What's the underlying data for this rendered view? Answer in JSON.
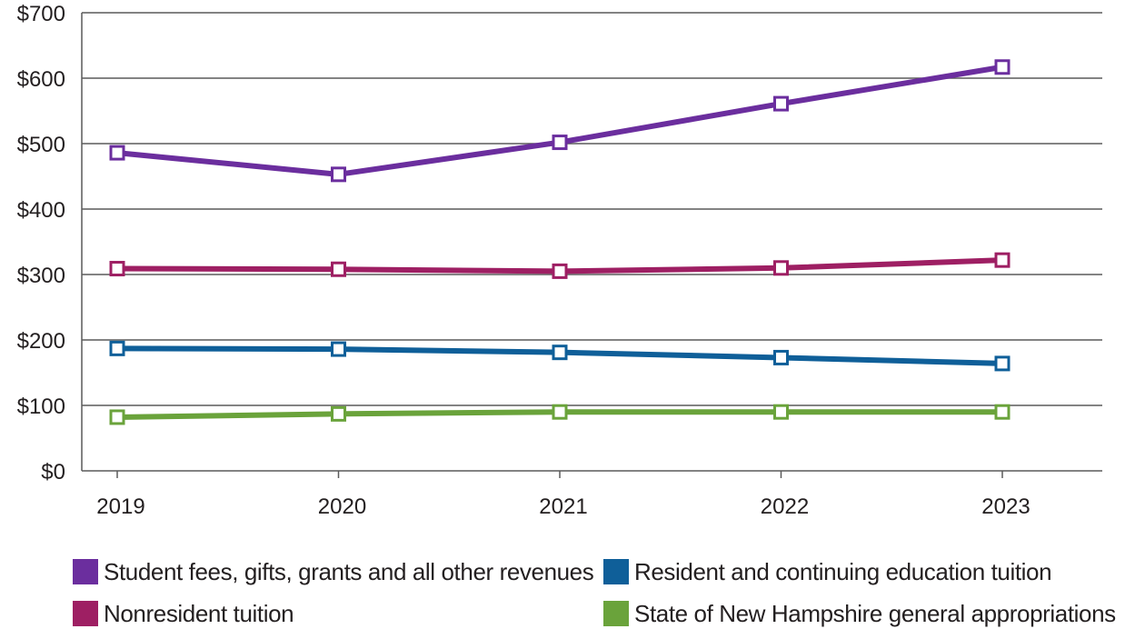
{
  "chart_data": {
    "type": "line",
    "title": "",
    "xlabel": "",
    "ylabel": "",
    "x": [
      "2019",
      "2020",
      "2021",
      "2022",
      "2023"
    ],
    "ylim": [
      0,
      700
    ],
    "y_ticks": [
      "$0",
      "$100",
      "$200",
      "$300",
      "$400",
      "$500",
      "$600",
      "$700"
    ],
    "grid": "horizontal",
    "legend_position": "bottom",
    "series": [
      {
        "name": "Student fees, gifts, grants and all other revenues",
        "color": "#6b2e9e",
        "values": [
          486,
          453,
          502,
          561,
          617
        ]
      },
      {
        "name": "Resident and continuing education tuition",
        "color": "#0f5f99",
        "values": [
          187,
          186,
          181,
          173,
          164
        ]
      },
      {
        "name": "Nonresident tuition",
        "color": "#9e1f63",
        "values": [
          309,
          308,
          305,
          310,
          322
        ]
      },
      {
        "name": "State of New Hampshire general appropriations",
        "color": "#6aa33b",
        "values": [
          82,
          87,
          90,
          90,
          90
        ]
      }
    ]
  }
}
